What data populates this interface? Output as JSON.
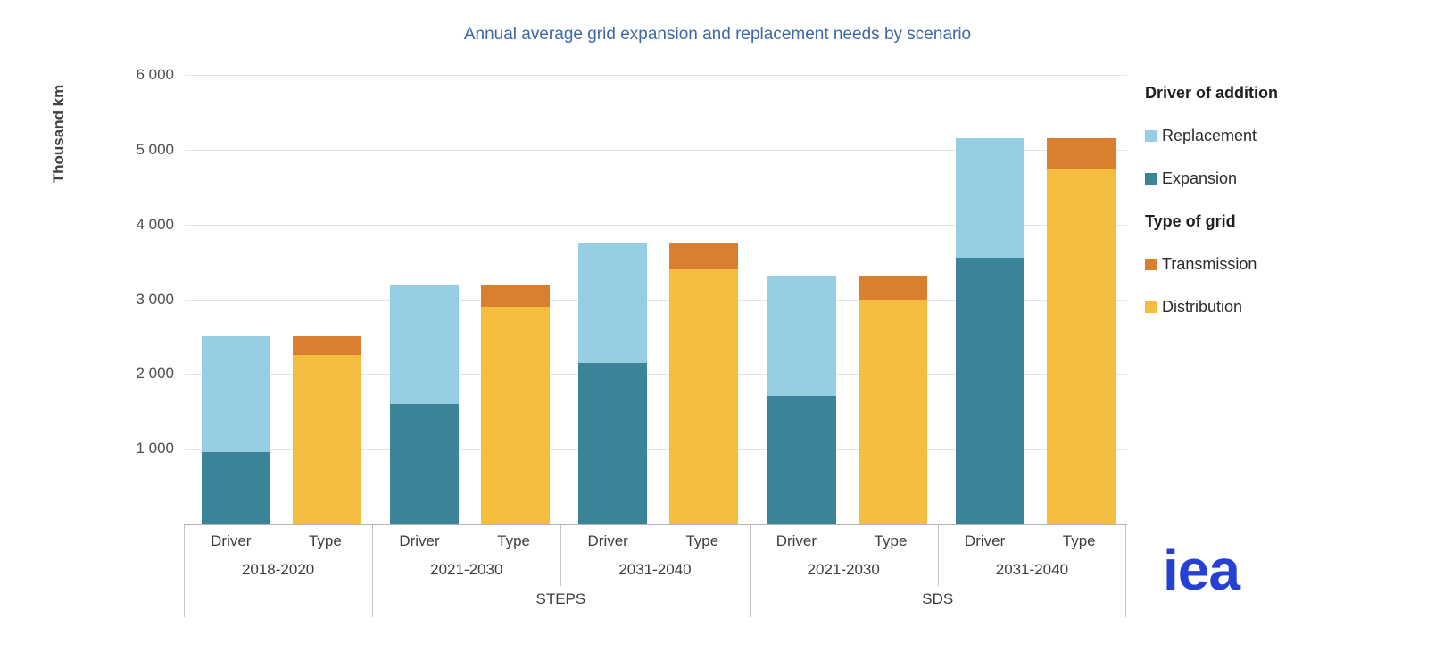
{
  "title": "Annual average grid expansion and replacement needs by scenario",
  "y_axis": {
    "label": "Thousand km",
    "ticks": [
      {
        "label": "6 000",
        "value": 6000
      },
      {
        "label": "5 000",
        "value": 5000
      },
      {
        "label": "4 000",
        "value": 4000
      },
      {
        "label": "3 000",
        "value": 3000
      },
      {
        "label": "2 000",
        "value": 2000
      },
      {
        "label": "1 000",
        "value": 1000
      }
    ]
  },
  "legend": {
    "sections": [
      {
        "header": "Driver of addition",
        "items": [
          {
            "label": "Replacement",
            "color": "#95cde2"
          },
          {
            "label": "Expansion",
            "color": "#3a8399"
          }
        ]
      },
      {
        "header": "Type of grid",
        "items": [
          {
            "label": "Transmission",
            "color": "#d9802f"
          },
          {
            "label": "Distribution",
            "color": "#f4bd40"
          }
        ]
      }
    ]
  },
  "logo_text": "iea",
  "colors": {
    "replacement": "#95cde2",
    "expansion": "#3a8399",
    "transmission": "#d9802f",
    "distribution": "#f4bd40",
    "title": "#3c69a7",
    "gridline": "#e3e3e3",
    "axis_line": "#b3b3b3",
    "iea_blue": "#2540d4"
  },
  "chart_data": {
    "type": "bar",
    "stacked": true,
    "title": "Annual average grid expansion and replacement needs by scenario",
    "xlabel": "",
    "ylabel": "Thousand km",
    "ylim": [
      0,
      6000
    ],
    "grid": true,
    "legend_position": "right",
    "bar_labels": [
      "Driver",
      "Type"
    ],
    "groups": [
      {
        "period": "2018-2020",
        "scenario": "",
        "bars": [
          {
            "label": "Driver",
            "segments": [
              {
                "name": "Expansion",
                "value": 950,
                "color": "#3a8399"
              },
              {
                "name": "Replacement",
                "value": 1550,
                "color": "#95cde2"
              }
            ]
          },
          {
            "label": "Type",
            "segments": [
              {
                "name": "Distribution",
                "value": 2250,
                "color": "#f4bd40"
              },
              {
                "name": "Transmission",
                "value": 250,
                "color": "#d9802f"
              }
            ]
          }
        ]
      },
      {
        "period": "2021-2030",
        "scenario": "STEPS",
        "bars": [
          {
            "label": "Driver",
            "segments": [
              {
                "name": "Expansion",
                "value": 1600,
                "color": "#3a8399"
              },
              {
                "name": "Replacement",
                "value": 1600,
                "color": "#95cde2"
              }
            ]
          },
          {
            "label": "Type",
            "segments": [
              {
                "name": "Distribution",
                "value": 2900,
                "color": "#f4bd40"
              },
              {
                "name": "Transmission",
                "value": 300,
                "color": "#d9802f"
              }
            ]
          }
        ]
      },
      {
        "period": "2031-2040",
        "scenario": "STEPS",
        "bars": [
          {
            "label": "Driver",
            "segments": [
              {
                "name": "Expansion",
                "value": 2150,
                "color": "#3a8399"
              },
              {
                "name": "Replacement",
                "value": 1600,
                "color": "#95cde2"
              }
            ]
          },
          {
            "label": "Type",
            "segments": [
              {
                "name": "Distribution",
                "value": 3400,
                "color": "#f4bd40"
              },
              {
                "name": "Transmission",
                "value": 350,
                "color": "#d9802f"
              }
            ]
          }
        ]
      },
      {
        "period": "2021-2030",
        "scenario": "SDS",
        "bars": [
          {
            "label": "Driver",
            "segments": [
              {
                "name": "Expansion",
                "value": 1700,
                "color": "#3a8399"
              },
              {
                "name": "Replacement",
                "value": 1600,
                "color": "#95cde2"
              }
            ]
          },
          {
            "label": "Type",
            "segments": [
              {
                "name": "Distribution",
                "value": 3000,
                "color": "#f4bd40"
              },
              {
                "name": "Transmission",
                "value": 300,
                "color": "#d9802f"
              }
            ]
          }
        ]
      },
      {
        "period": "2031-2040",
        "scenario": "SDS",
        "bars": [
          {
            "label": "Driver",
            "segments": [
              {
                "name": "Expansion",
                "value": 3550,
                "color": "#3a8399"
              },
              {
                "name": "Replacement",
                "value": 1600,
                "color": "#95cde2"
              }
            ]
          },
          {
            "label": "Type",
            "segments": [
              {
                "name": "Distribution",
                "value": 4750,
                "color": "#f4bd40"
              },
              {
                "name": "Transmission",
                "value": 400,
                "color": "#d9802f"
              }
            ]
          }
        ]
      }
    ],
    "scenario_spans": [
      {
        "label": "",
        "start": 0,
        "count": 1
      },
      {
        "label": "STEPS",
        "start": 1,
        "count": 2
      },
      {
        "label": "SDS",
        "start": 3,
        "count": 2
      }
    ]
  }
}
